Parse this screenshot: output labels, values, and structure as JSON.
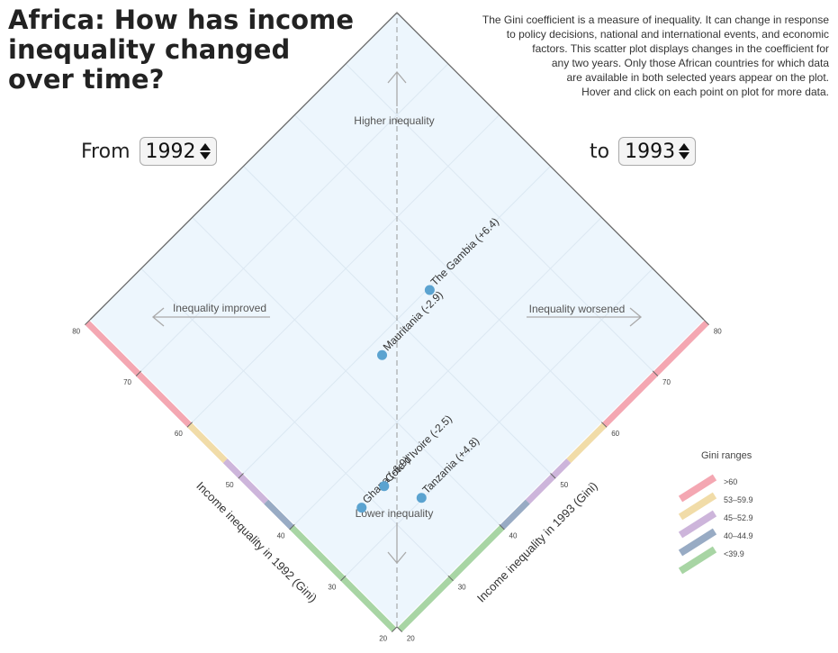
{
  "title": {
    "line1": "Africa: How has income",
    "line2": "inequality changed",
    "line3": "over time?"
  },
  "description": {
    "lines": [
      "The Gini coefficient is a measure of inequality. It can change in response",
      "to policy decisions, national and international events, and economic",
      "factors. This scatter plot displays changes in the coefficient for",
      "any two years. Only those African countries for which data",
      "are available in both selected years appear on the plot.",
      "Hover and click on each point on plot for more data."
    ]
  },
  "controls": {
    "from_label": "From",
    "from_value": "1992",
    "to_label": "to",
    "to_value": "1993"
  },
  "chart_data": {
    "type": "scatter",
    "x_axis": {
      "label": "Income inequality in 1992 (Gini)",
      "range": [
        20,
        80
      ],
      "ticks": [
        20,
        30,
        40,
        50,
        60,
        70,
        80
      ]
    },
    "y_axis": {
      "label": "Income inequality in 1993 (Gini)",
      "range": [
        20,
        80
      ],
      "ticks": [
        20,
        30,
        40,
        50,
        60,
        70,
        80
      ]
    },
    "annotations": {
      "top": "Higher inequality",
      "bottom": "Lower inequality",
      "left": "Inequality improved",
      "right": "Inequality worsened"
    },
    "points": [
      {
        "label": "The Gambia (+6.4)",
        "x": 49.7,
        "y": 56.1
      },
      {
        "label": "Mauritania (-2.9)",
        "x": 48.0,
        "y": 45.1
      },
      {
        "label": "Ghana (-6.9)",
        "x": 35.1,
        "y": 28.2
      },
      {
        "label": "Cote d'Ivoire (-2.5)",
        "x": 35.0,
        "y": 32.5
      },
      {
        "label": "Tanzania (+4.8)",
        "x": 30.2,
        "y": 35.0
      }
    ],
    "point_color": "#5ba3d0",
    "gini_ranges": {
      "title": "Gini ranges",
      "items": [
        {
          "label": ">60",
          "min": 60,
          "max": 80,
          "color": "#f4a7b2"
        },
        {
          "label": "53–59.9",
          "min": 53,
          "max": 60,
          "color": "#f1dca8"
        },
        {
          "label": "45–52.9",
          "min": 45,
          "max": 53,
          "color": "#cdb5db"
        },
        {
          "label": "40–44.9",
          "min": 40,
          "max": 45,
          "color": "#98abc4"
        },
        {
          "label": "<39.9",
          "min": 20,
          "max": 40,
          "color": "#a8d5a4"
        }
      ]
    }
  }
}
